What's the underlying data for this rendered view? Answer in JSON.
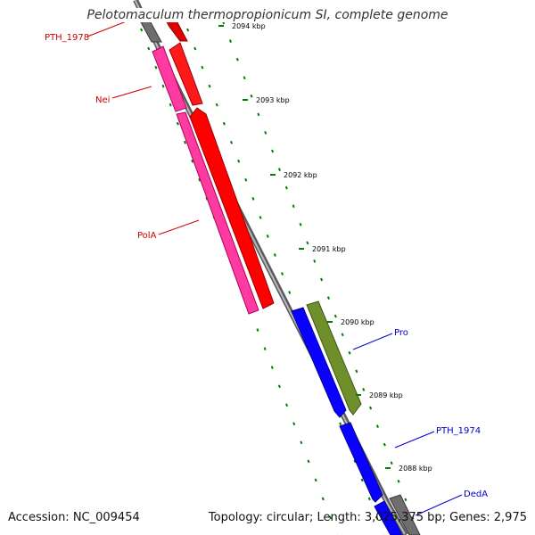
{
  "title": "Pelotomaculum thermopropionicum SI, complete genome",
  "footer": {
    "accession": "Accession: NC_009454",
    "summary": "Topology: circular; Length: 3,025,375 bp; Genes: 2,975"
  },
  "colors": {
    "backbone": "#808080",
    "tick": "#008000",
    "forward_label": "#cc0000",
    "reverse_label": "#0000cc",
    "red_gene": "#ff0000",
    "pink_gene": "#ff3399",
    "blue_gene": "#0000ff",
    "olive_gene": "#6b8e23",
    "gray_gene": "#808080"
  },
  "ticks": [
    {
      "label": "2094 kbp"
    },
    {
      "label": "2093 kbp"
    },
    {
      "label": "2092 kbp"
    },
    {
      "label": "2091 kbp"
    },
    {
      "label": "2090 kbp"
    },
    {
      "label": "2089 kbp"
    },
    {
      "label": "2088 kbp"
    }
  ],
  "gene_labels": [
    {
      "text": "PTH_1978",
      "strand": "forward"
    },
    {
      "text": "Nei",
      "strand": "forward"
    },
    {
      "text": "PolA",
      "strand": "forward"
    },
    {
      "text": "Pro",
      "strand": "reverse"
    },
    {
      "text": "PTH_1974",
      "strand": "reverse"
    },
    {
      "text": "DedA",
      "strand": "reverse"
    }
  ]
}
